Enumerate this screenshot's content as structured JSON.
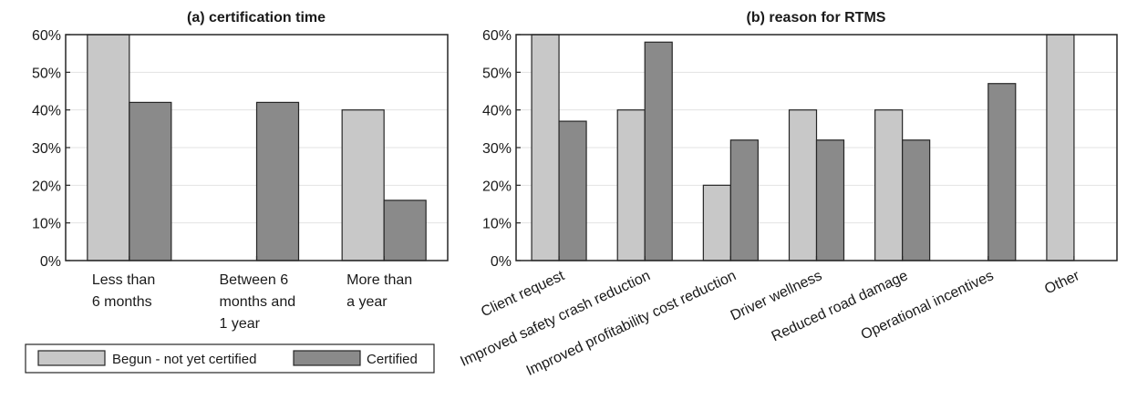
{
  "colors": {
    "begun": "#c8c8c8",
    "certified": "#8a8a8a",
    "grid": "#e3e3e3",
    "axis": "#262626"
  },
  "legend": {
    "begun_label": "Begun - not yet certified",
    "certified_label": "Certified"
  },
  "chart_data": [
    {
      "type": "bar",
      "title": "(a) certification time",
      "categories": [
        "Less than 6 months",
        "Between 6 months and 1 year",
        "More than a year"
      ],
      "category_lines": [
        [
          "Less than",
          "6 months"
        ],
        [
          "Between 6",
          "months and",
          "1 year"
        ],
        [
          "More than",
          "a year"
        ]
      ],
      "series": [
        {
          "name": "Begun - not yet certified",
          "values": [
            60,
            0,
            40
          ]
        },
        {
          "name": "Certified",
          "values": [
            42,
            42,
            16
          ]
        }
      ],
      "ylim": [
        0,
        60
      ],
      "yticks": [
        "0%",
        "10%",
        "20%",
        "30%",
        "40%",
        "50%",
        "60%"
      ],
      "grid": true,
      "legend_position": "bottom"
    },
    {
      "type": "bar",
      "title": "(b) reason for RTMS",
      "categories": [
        "Client request",
        "Improved safety crash reduction",
        "Improved profitability cost reduction",
        "Driver wellness",
        "Reduced road damage",
        "Operational incentives",
        "Other"
      ],
      "series": [
        {
          "name": "Begun - not yet certified",
          "values": [
            60,
            40,
            20,
            40,
            40,
            0,
            60
          ]
        },
        {
          "name": "Certified",
          "values": [
            37,
            58,
            32,
            32,
            32,
            47,
            0
          ]
        }
      ],
      "ylim": [
        0,
        60
      ],
      "yticks": [
        "0%",
        "10%",
        "20%",
        "30%",
        "40%",
        "50%",
        "60%"
      ],
      "grid": true,
      "x_tick_rotation": "diagonal"
    }
  ]
}
